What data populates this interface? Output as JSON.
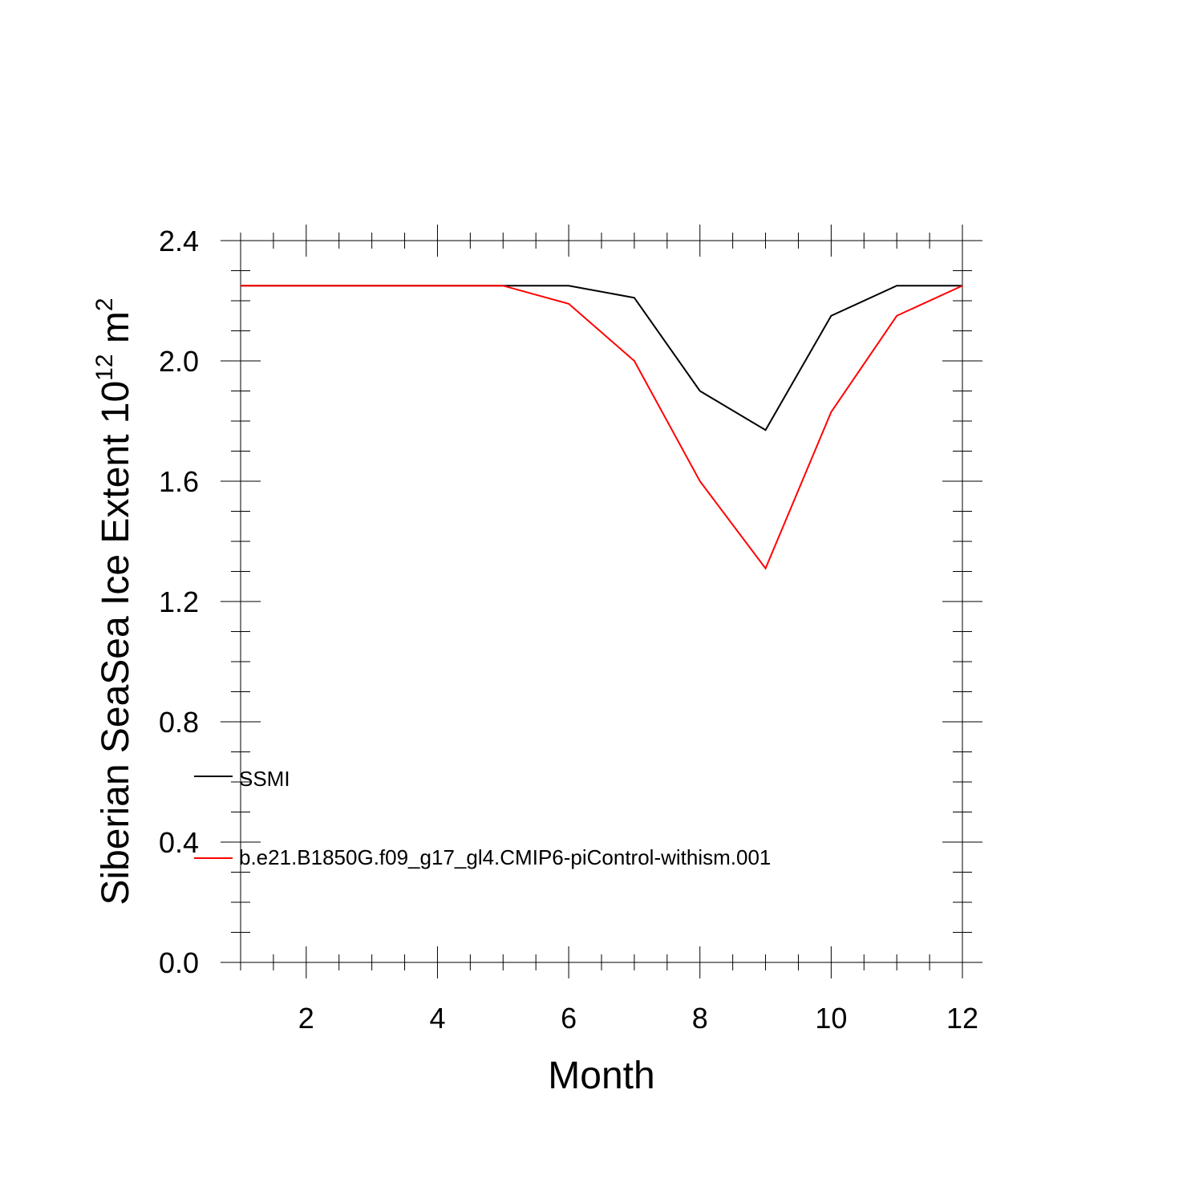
{
  "chart_data": {
    "type": "line",
    "title": "",
    "xlabel": "Month",
    "ylabel_prefix": "Siberian SeaSea Ice Extent 10",
    "ylabel_exp1": "12",
    "ylabel_unit": " m",
    "ylabel_exp2": "2",
    "xlim": [
      1,
      12
    ],
    "ylim": [
      0.0,
      2.4
    ],
    "x_ticks": [
      2,
      4,
      6,
      8,
      10,
      12
    ],
    "x_tick_labels": [
      "2",
      "4",
      "6",
      "8",
      "10",
      "12"
    ],
    "y_ticks": [
      0.0,
      0.4,
      0.8,
      1.2,
      1.6,
      2.0,
      2.4
    ],
    "y_tick_labels": [
      "0.0",
      "0.4",
      "0.8",
      "1.2",
      "1.6",
      "2.0",
      "2.4"
    ],
    "x": [
      1,
      2,
      3,
      4,
      5,
      6,
      7,
      8,
      9,
      10,
      11,
      12
    ],
    "legend_position": "left-middle",
    "series": [
      {
        "name": "SSMI",
        "color": "#000000",
        "values": [
          2.25,
          2.25,
          2.25,
          2.25,
          2.25,
          2.25,
          2.21,
          1.9,
          1.77,
          2.15,
          2.25,
          2.25
        ]
      },
      {
        "name": "b.e21.B1850G.f09_g17_gl4.CMIP6-piControl-withism.001",
        "color": "#ff0000",
        "values": [
          2.25,
          2.25,
          2.25,
          2.25,
          2.25,
          2.19,
          2.0,
          1.6,
          1.31,
          1.83,
          2.15,
          2.25
        ]
      }
    ]
  }
}
